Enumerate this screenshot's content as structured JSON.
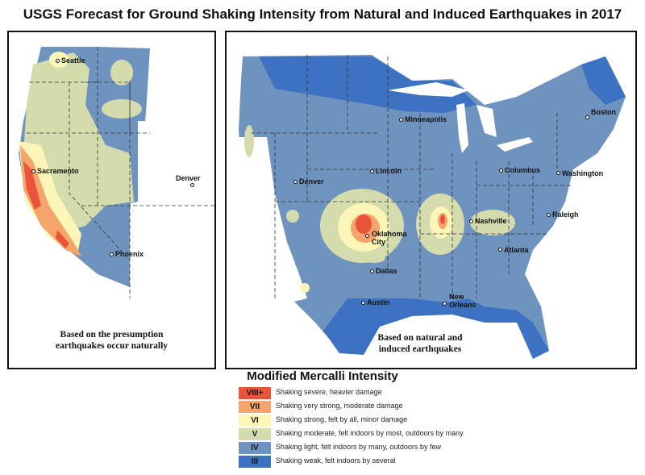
{
  "title": "USGS Forecast for Ground Shaking Intensity from Natural and Induced Earthquakes in 2017",
  "panels": {
    "west": {
      "note_line1": "Based on the presumption",
      "note_line2": "earthquakes occur naturally",
      "cities": {
        "seattle": "Seattle",
        "sacramento": "Sacramento",
        "denver": "Denver",
        "phoenix": "Phoenix"
      }
    },
    "us": {
      "note_line1": "Based on natural and",
      "note_line2": "induced earthquakes",
      "cities": {
        "minneapolis": "Minneapolis",
        "boston": "Boston",
        "denver": "Denver",
        "lincoln": "Lincoln",
        "columbus": "Columbus",
        "washington": "Washington",
        "nashville": "Nashville",
        "raleigh": "Raleigh",
        "oklahoma1": "Oklahoma",
        "oklahoma2": "City",
        "atlanta": "Atlanta",
        "dallas": "Dallas",
        "austin": "Austin",
        "neworleans1": "New",
        "neworleans2": "Orleans"
      }
    }
  },
  "legend": {
    "title": "Modified Mercalli Intensity",
    "items": [
      {
        "level": "VIII+",
        "description": "Shaking severe, heavier damage",
        "color": "#e8553a"
      },
      {
        "level": "VII",
        "description": "Shaking very strong, moderate damage",
        "color": "#f5a46b"
      },
      {
        "level": "VI",
        "description": "Shaking strong, felt by all, minor damage",
        "color": "#fbf6b8"
      },
      {
        "level": "V",
        "description": "Shaking moderate, felt indoors by most, outdoors by many",
        "color": "#d4dcae"
      },
      {
        "level": "IV",
        "description": "Shaking light, felt indoors by many, outdoors by few",
        "color": "#6f93bf"
      },
      {
        "level": "III",
        "description": "Shaking weak, felt indoors by several",
        "color": "#3d72c2"
      }
    ]
  },
  "colors": {
    "level_viii": "#e8553a",
    "level_vii": "#f5a46b",
    "level_vi": "#fbf6b8",
    "level_v": "#d4dcae",
    "level_iv": "#6f93bf",
    "level_iii": "#3d72c2"
  }
}
